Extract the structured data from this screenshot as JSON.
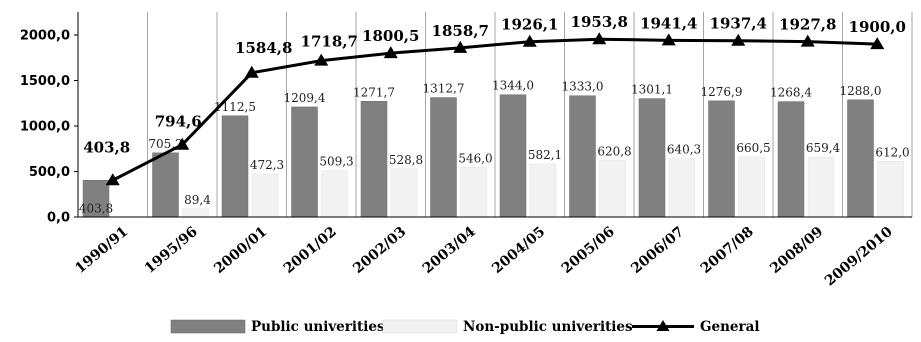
{
  "chart_data": {
    "type": "bar",
    "categories": [
      "1990/91",
      "1995/96",
      "2000/01",
      "2001/02",
      "2002/03",
      "2003/04",
      "2004/05",
      "2005/06",
      "2006/07",
      "2007/08",
      "2008/09",
      "2009/2010"
    ],
    "series": [
      {
        "name": "Public univerities",
        "kind": "bar",
        "color": "#808080",
        "values": [
          403.8,
          705.2,
          1112.5,
          1209.4,
          1271.7,
          1312.7,
          1344.0,
          1333.0,
          1301.1,
          1276.9,
          1268.4,
          1288.0
        ],
        "labels": [
          "403,8",
          "705,2",
          "1112,5",
          "1209,4",
          "1271,7",
          "1312,7",
          "1344,0",
          "1333,0",
          "1301,1",
          "1276,9",
          "1268,4",
          "1288,0"
        ]
      },
      {
        "name": "Non-public univerities",
        "kind": "bar",
        "color": "#f2f2f2",
        "values": [
          0,
          89.4,
          472.3,
          509.3,
          528.8,
          546.0,
          582.1,
          620.8,
          640.3,
          660.5,
          659.4,
          612.0
        ],
        "labels": [
          "",
          "89,4",
          "472,3",
          "509,3",
          "528,8",
          "546,0",
          "582,1",
          "620,8",
          "640,3",
          "660,5",
          "659,4",
          "612,0"
        ]
      },
      {
        "name": "General",
        "kind": "line",
        "color": "#000000",
        "values": [
          403.8,
          794.6,
          1584.8,
          1718.7,
          1800.5,
          1858.7,
          1926.1,
          1953.8,
          1941.4,
          1937.4,
          1927.8,
          1900.0
        ],
        "labels": [
          "403,8",
          "794,6",
          "1584,8",
          "1718,7",
          "1800,5",
          "1858,7",
          "1926,1",
          "1953,8",
          "1941,4",
          "1937,4",
          "1927,8",
          "1900,0"
        ]
      }
    ],
    "ylim": [
      0,
      2000
    ],
    "yticks": [
      0,
      500,
      1000,
      1500,
      2000
    ],
    "ytick_labels": [
      "0,0",
      "500,0",
      "1000,0",
      "1500,0",
      "2000,0"
    ],
    "grid": "vertical",
    "legend": "bottom",
    "title": "",
    "xlabel": "",
    "ylabel": ""
  }
}
